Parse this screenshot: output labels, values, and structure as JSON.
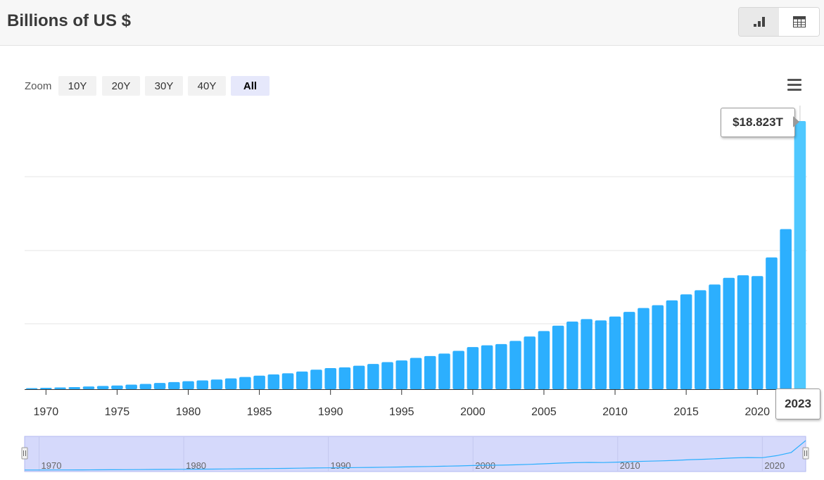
{
  "header": {
    "title": "Billions of US $"
  },
  "view_toggle": {
    "chart_icon": "bar-chart-icon",
    "table_icon": "table-grid-icon"
  },
  "zoom": {
    "label": "Zoom",
    "buttons": [
      "10Y",
      "20Y",
      "30Y",
      "40Y",
      "All"
    ],
    "active": "All"
  },
  "menu_icon": "hamburger-menu-icon",
  "tooltip": {
    "value": "$18.823T",
    "year": "2023"
  },
  "colors": {
    "bar": "#2caffe",
    "bar_highlight": "#4fc8ff",
    "navigator": "#d5d9fb"
  },
  "chart_data": {
    "type": "bar",
    "title": "Billions of US $",
    "x": [
      1969,
      1970,
      1971,
      1972,
      1973,
      1974,
      1975,
      1976,
      1977,
      1978,
      1979,
      1980,
      1981,
      1982,
      1983,
      1984,
      1985,
      1986,
      1987,
      1988,
      1989,
      1990,
      1991,
      1992,
      1993,
      1994,
      1995,
      1996,
      1997,
      1998,
      1999,
      2000,
      2001,
      2002,
      2003,
      2004,
      2005,
      2006,
      2007,
      2008,
      2009,
      2010,
      2011,
      2012,
      2013,
      2014,
      2015,
      2016,
      2017,
      2018,
      2019,
      2020,
      2021,
      2022,
      2023
    ],
    "values": [
      75,
      100,
      125,
      150,
      190,
      230,
      260,
      320,
      370,
      440,
      500,
      560,
      620,
      680,
      760,
      860,
      950,
      1040,
      1120,
      1240,
      1370,
      1480,
      1530,
      1650,
      1770,
      1900,
      2020,
      2200,
      2330,
      2500,
      2690,
      2960,
      3080,
      3170,
      3390,
      3700,
      4080,
      4460,
      4750,
      4920,
      4830,
      5100,
      5430,
      5700,
      5900,
      6240,
      6660,
      6950,
      7350,
      7820,
      8000,
      7940,
      9250,
      11240,
      18823
    ],
    "x_ticks": [
      "1970",
      "1975",
      "1980",
      "1985",
      "1990",
      "1995",
      "2000",
      "2005",
      "2010",
      "2015",
      "2020"
    ],
    "highlight": {
      "x": 2023,
      "label": "$18.823T"
    },
    "ylabel": "",
    "xlabel": "",
    "grid": true,
    "navigator_ticks": [
      "1970",
      "1980",
      "1990",
      "2000",
      "2010",
      "2020"
    ]
  }
}
